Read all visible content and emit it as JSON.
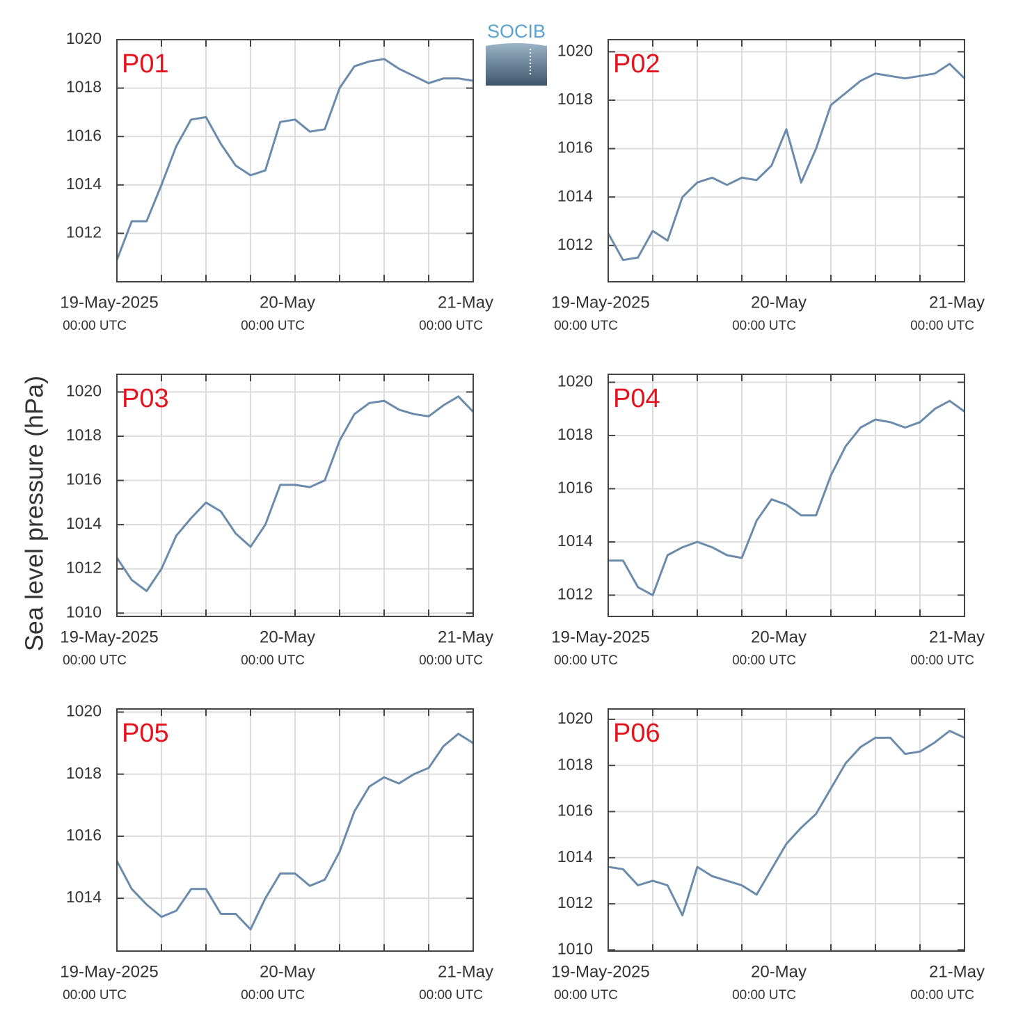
{
  "ylabel": "Sea level pressure (hPa)",
  "logo": "SOCIB",
  "chart_data": [
    {
      "type": "line",
      "title": "P01",
      "color": "#6a8bab",
      "x": [
        0,
        2,
        4,
        6,
        8,
        10,
        12,
        14,
        16,
        18,
        20,
        22,
        24,
        26,
        28,
        30,
        32,
        34,
        36,
        38,
        40,
        42,
        44,
        46,
        48
      ],
      "values": [
        1010.9,
        1012.5,
        1012.5,
        1014.0,
        1015.6,
        1016.7,
        1016.8,
        1015.7,
        1014.8,
        1014.4,
        1014.6,
        1016.6,
        1016.7,
        1016.2,
        1016.3,
        1018.0,
        1018.9,
        1019.1,
        1019.2,
        1018.8,
        1018.5,
        1018.2,
        1018.4,
        1018.4,
        1018.3
      ],
      "xlim": [
        0,
        48
      ],
      "xticks": [
        {
          "value": 0,
          "label": "19-May-2025"
        },
        {
          "value": 24,
          "label": "20-May"
        },
        {
          "value": 48,
          "label": "21-May"
        }
      ],
      "xtick_sublabels": [
        "00:00 UTC",
        "00:00 UTC",
        "00:00 UTC"
      ],
      "xminor": [
        6,
        12,
        18,
        30,
        36,
        42
      ],
      "ylim": [
        1010,
        1020
      ],
      "yticks": [
        1012,
        1014,
        1016,
        1018,
        1020
      ],
      "grid": true
    },
    {
      "type": "line",
      "title": "P02",
      "color": "#6a8bab",
      "x": [
        0,
        2,
        4,
        6,
        8,
        10,
        12,
        14,
        16,
        18,
        20,
        22,
        24,
        26,
        28,
        30,
        32,
        34,
        36,
        38,
        40,
        42,
        44,
        46,
        48
      ],
      "values": [
        1012.5,
        1011.4,
        1011.5,
        1012.6,
        1012.2,
        1014.0,
        1014.6,
        1014.8,
        1014.5,
        1014.8,
        1014.7,
        1015.3,
        1016.8,
        1014.6,
        1016.0,
        1017.8,
        1018.3,
        1018.8,
        1019.1,
        1019.0,
        1018.9,
        1019.0,
        1019.1,
        1019.5,
        1018.9
      ],
      "xlim": [
        0,
        48
      ],
      "xticks": [
        {
          "value": 0,
          "label": "19-May-2025"
        },
        {
          "value": 24,
          "label": "20-May"
        },
        {
          "value": 48,
          "label": "21-May"
        }
      ],
      "xtick_sublabels": [
        "00:00 UTC",
        "00:00 UTC",
        "00:00 UTC"
      ],
      "xminor": [
        6,
        12,
        18,
        30,
        36,
        42
      ],
      "ylim": [
        1010.5,
        1020.5
      ],
      "yticks": [
        1012,
        1014,
        1016,
        1018,
        1020
      ],
      "grid": true
    },
    {
      "type": "line",
      "title": "P03",
      "color": "#6a8bab",
      "x": [
        0,
        2,
        4,
        6,
        8,
        10,
        12,
        14,
        16,
        18,
        20,
        22,
        24,
        26,
        28,
        30,
        32,
        34,
        36,
        38,
        40,
        42,
        44,
        46,
        48
      ],
      "values": [
        1012.5,
        1011.5,
        1011.0,
        1012.0,
        1013.5,
        1014.3,
        1015.0,
        1014.6,
        1013.6,
        1013.0,
        1014.0,
        1015.8,
        1015.8,
        1015.7,
        1016.0,
        1017.8,
        1019.0,
        1019.5,
        1019.6,
        1019.2,
        1019.0,
        1018.9,
        1019.4,
        1019.8,
        1019.1
      ],
      "xlim": [
        0,
        48
      ],
      "xticks": [
        {
          "value": 0,
          "label": "19-May-2025"
        },
        {
          "value": 24,
          "label": "20-May"
        },
        {
          "value": 48,
          "label": "21-May"
        }
      ],
      "xtick_sublabels": [
        "00:00 UTC",
        "00:00 UTC",
        "00:00 UTC"
      ],
      "xminor": [
        6,
        12,
        18,
        30,
        36,
        42
      ],
      "ylim": [
        1009.85,
        1020.8
      ],
      "yticks": [
        1010,
        1012,
        1014,
        1016,
        1018,
        1020
      ],
      "grid": true
    },
    {
      "type": "line",
      "title": "P04",
      "color": "#6a8bab",
      "x": [
        0,
        2,
        4,
        6,
        8,
        10,
        12,
        14,
        16,
        18,
        20,
        22,
        24,
        26,
        28,
        30,
        32,
        34,
        36,
        38,
        40,
        42,
        44,
        46,
        48
      ],
      "values": [
        1013.3,
        1013.3,
        1012.3,
        1012.0,
        1013.5,
        1013.8,
        1014.0,
        1013.8,
        1013.5,
        1013.4,
        1014.8,
        1015.6,
        1015.4,
        1015.0,
        1015.0,
        1016.5,
        1017.6,
        1018.3,
        1018.6,
        1018.5,
        1018.3,
        1018.5,
        1019.0,
        1019.3,
        1018.9
      ],
      "xlim": [
        0,
        48
      ],
      "xticks": [
        {
          "value": 0,
          "label": "19-May-2025"
        },
        {
          "value": 24,
          "label": "20-May"
        },
        {
          "value": 48,
          "label": "21-May"
        }
      ],
      "xtick_sublabels": [
        "00:00 UTC",
        "00:00 UTC",
        "00:00 UTC"
      ],
      "xminor": [
        6,
        12,
        18,
        30,
        36,
        42
      ],
      "ylim": [
        1011.2,
        1020.3
      ],
      "yticks": [
        1012,
        1014,
        1016,
        1018,
        1020
      ],
      "grid": true
    },
    {
      "type": "line",
      "title": "P05",
      "color": "#6a8bab",
      "x": [
        0,
        2,
        4,
        6,
        8,
        10,
        12,
        14,
        16,
        18,
        20,
        22,
        24,
        26,
        28,
        30,
        32,
        34,
        36,
        38,
        40,
        42,
        44,
        46,
        48
      ],
      "values": [
        1015.2,
        1014.3,
        1013.8,
        1013.4,
        1013.6,
        1014.3,
        1014.3,
        1013.5,
        1013.5,
        1013.0,
        1014.0,
        1014.8,
        1014.8,
        1014.4,
        1014.6,
        1015.5,
        1016.8,
        1017.6,
        1017.9,
        1017.7,
        1018.0,
        1018.2,
        1018.9,
        1019.3,
        1019.0
      ],
      "xlim": [
        0,
        48
      ],
      "xticks": [
        {
          "value": 0,
          "label": "19-May-2025"
        },
        {
          "value": 24,
          "label": "20-May"
        },
        {
          "value": 48,
          "label": "21-May"
        }
      ],
      "xtick_sublabels": [
        "00:00 UTC",
        "00:00 UTC",
        "00:00 UTC"
      ],
      "xminor": [
        6,
        12,
        18,
        30,
        36,
        42
      ],
      "ylim": [
        1012.3,
        1020.1
      ],
      "yticks": [
        1014,
        1016,
        1018,
        1020
      ],
      "grid": true
    },
    {
      "type": "line",
      "title": "P06",
      "color": "#6a8bab",
      "x": [
        0,
        2,
        4,
        6,
        8,
        10,
        12,
        14,
        16,
        18,
        20,
        22,
        24,
        26,
        28,
        30,
        32,
        34,
        36,
        38,
        40,
        42,
        44,
        46,
        48
      ],
      "values": [
        1013.6,
        1013.5,
        1012.8,
        1013.0,
        1012.8,
        1011.5,
        1013.6,
        1013.2,
        1013.0,
        1012.8,
        1012.4,
        1013.5,
        1014.6,
        1015.3,
        1015.9,
        1017.0,
        1018.1,
        1018.8,
        1019.2,
        1019.2,
        1018.5,
        1018.6,
        1019.0,
        1019.5,
        1019.2
      ],
      "xlim": [
        0,
        48
      ],
      "xticks": [
        {
          "value": 0,
          "label": "19-May-2025"
        },
        {
          "value": 24,
          "label": "20-May"
        },
        {
          "value": 48,
          "label": "21-May"
        }
      ],
      "xtick_sublabels": [
        "00:00 UTC",
        "00:00 UTC",
        "00:00 UTC"
      ],
      "xminor": [
        6,
        12,
        18,
        30,
        36,
        42
      ],
      "ylim": [
        1009.95,
        1020.45
      ],
      "yticks": [
        1010,
        1012,
        1014,
        1016,
        1018,
        1020
      ],
      "grid": true
    }
  ]
}
